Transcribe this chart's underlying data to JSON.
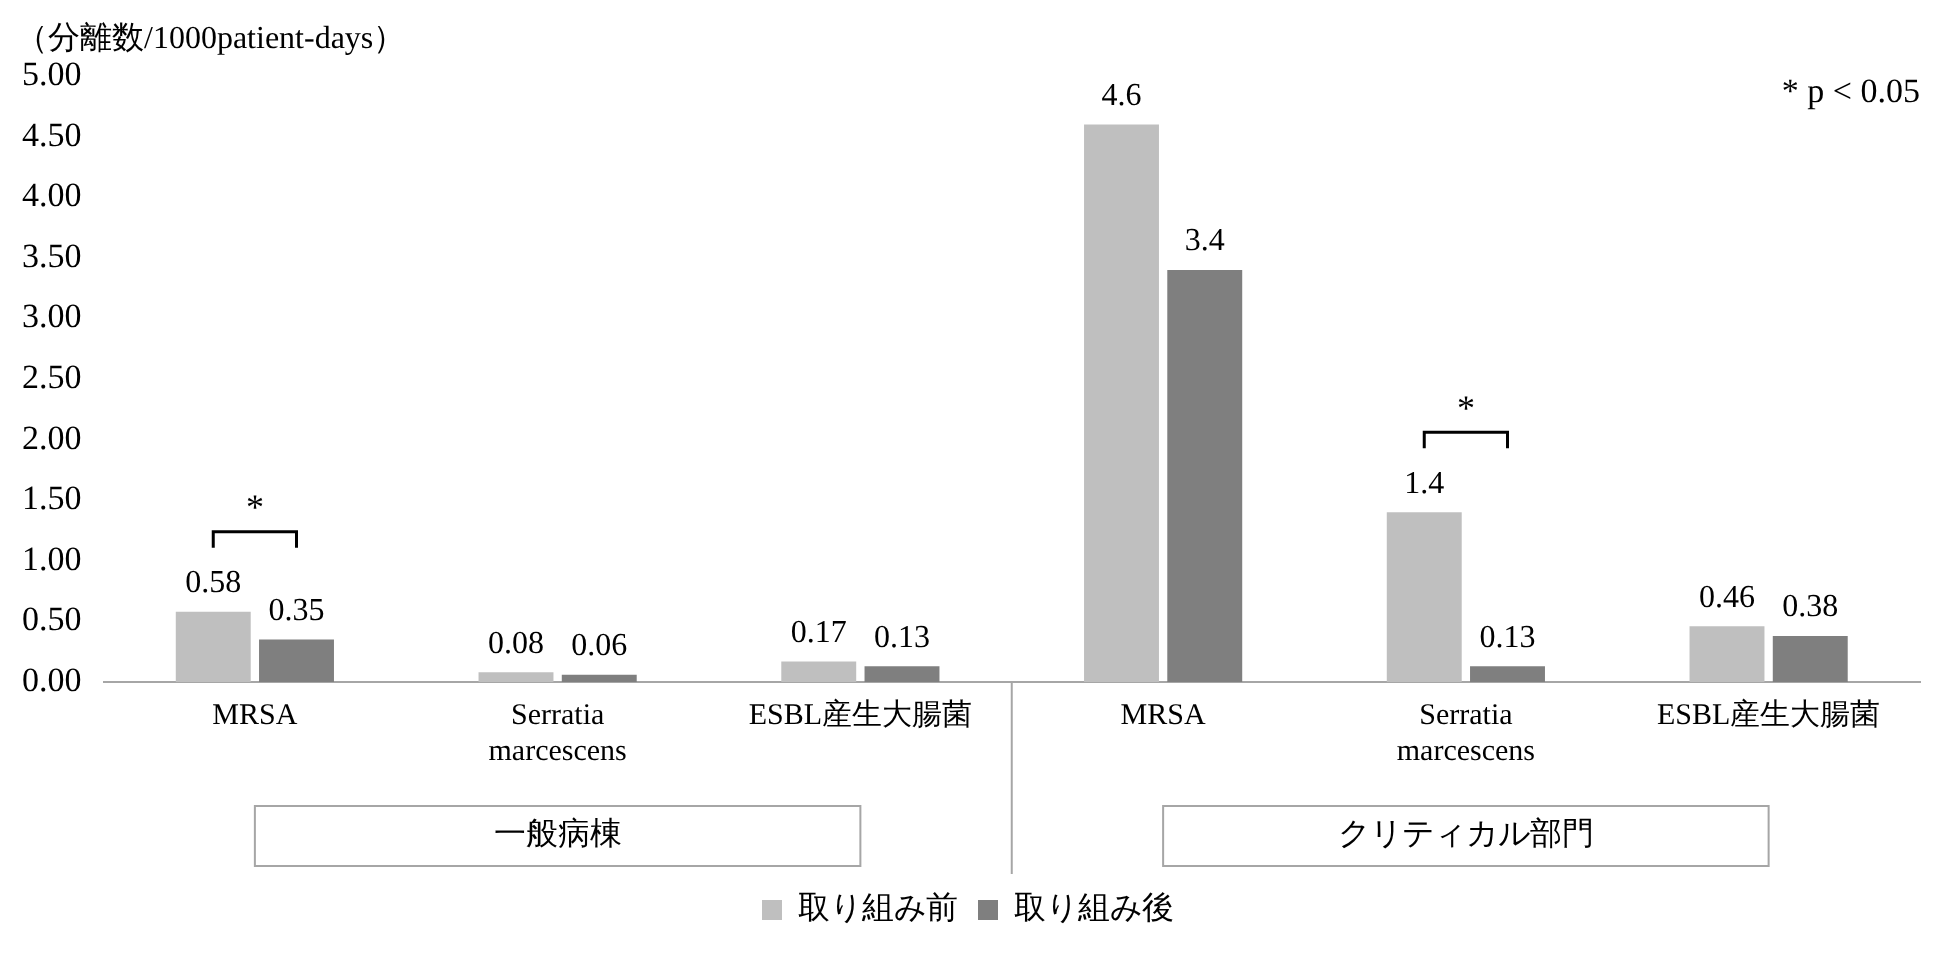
{
  "chart_data": {
    "type": "bar",
    "ylabel": "（分離数/1000patient-days）",
    "categories": [
      "MRSA",
      "Serratia marcescens",
      "ESBL産生大腸菌",
      "MRSA",
      "Serratia marcescens",
      "ESBL産生大腸菌"
    ],
    "series": [
      {
        "name": "取り組み前",
        "color": "#bfbfbf",
        "values": [
          0.58,
          0.08,
          0.17,
          4.6,
          1.4,
          0.46
        ]
      },
      {
        "name": "取り組み後",
        "color": "#7f7f7f",
        "values": [
          0.35,
          0.06,
          0.13,
          3.4,
          0.13,
          0.38
        ]
      }
    ],
    "ylim": [
      0,
      5
    ],
    "yticks": [
      {
        "value": 0,
        "label": "0.00"
      },
      {
        "value": 0.5,
        "label": "0.50"
      },
      {
        "value": 1,
        "label": "1.00"
      },
      {
        "value": 1.5,
        "label": "1.50"
      },
      {
        "value": 2,
        "label": "2.00"
      },
      {
        "value": 2.5,
        "label": "2.50"
      },
      {
        "value": 3,
        "label": "3.00"
      },
      {
        "value": 3.5,
        "label": "3.50"
      },
      {
        "value": 4,
        "label": "4.00"
      },
      {
        "value": 4.5,
        "label": "4.50"
      },
      {
        "value": 5,
        "label": "5.00"
      }
    ],
    "annotations": [
      "* p < 0.05",
      "一般病棟",
      "クリティカル部門",
      "*",
      "*"
    ],
    "data_labels": true,
    "grid": false,
    "legend": "bottom"
  }
}
